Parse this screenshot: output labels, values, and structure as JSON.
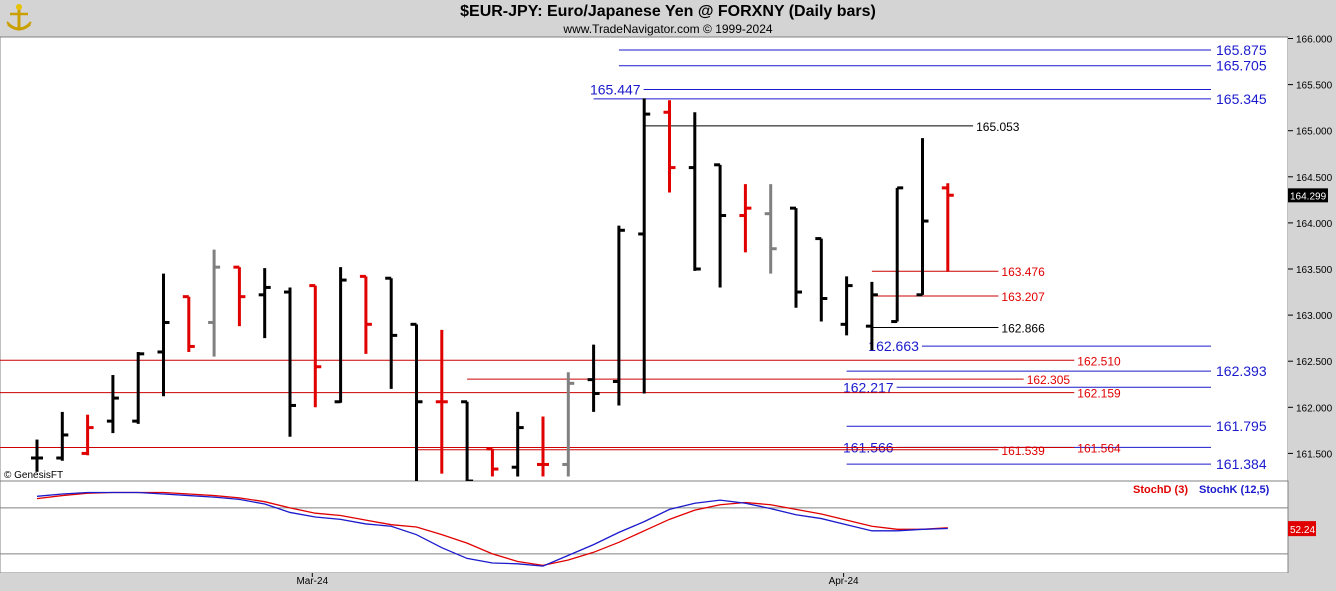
{
  "header": {
    "title": "$EUR-JPY:  Euro/Japanese Yen @ FORXNY  (Daily bars)",
    "subtitle": "www.TradeNavigator.com © 1999-2024"
  },
  "watermark": "© GenesisFT",
  "logo_icon": "trade-navigator-logo-icon",
  "colors": {
    "up_bar": "#000000",
    "down_bar": "#e00000",
    "neutral_bar": "#808080",
    "blue_level": "#1a1acc",
    "red_level": "#cc0000",
    "stoch_d": "#e00000",
    "stoch_k": "#1a1acc"
  },
  "chart_data": [
    {
      "type": "ohlc",
      "title": "$EUR-JPY:  Euro/Japanese Yen @ FORXNY  (Daily bars)",
      "ylim": [
        161.2,
        166.1
      ],
      "y_ticks": [
        "166.000",
        "165.500",
        "165.000",
        "164.500",
        "164.000",
        "163.500",
        "163.000",
        "162.500",
        "162.000",
        "161.500"
      ],
      "y_tick_values": [
        166.0,
        165.5,
        165.0,
        164.5,
        164.0,
        163.5,
        163.0,
        162.5,
        162.0,
        161.5
      ],
      "x_labels": [
        {
          "label": "Mar-24",
          "index": 11
        },
        {
          "label": "Apr-24",
          "index": 32
        }
      ],
      "last_price_label": "164.299",
      "last_price": 164.299,
      "bars": [
        {
          "o": 161.45,
          "h": 161.65,
          "l": 161.3,
          "c": 161.45,
          "color": "black"
        },
        {
          "o": 161.45,
          "h": 161.95,
          "l": 161.42,
          "c": 161.7,
          "color": "black"
        },
        {
          "o": 161.5,
          "h": 161.92,
          "l": 161.48,
          "c": 161.78,
          "color": "red"
        },
        {
          "o": 161.85,
          "h": 162.35,
          "l": 161.72,
          "c": 162.1,
          "color": "black"
        },
        {
          "o": 161.85,
          "h": 162.6,
          "l": 161.82,
          "c": 162.58,
          "color": "black"
        },
        {
          "o": 162.6,
          "h": 163.45,
          "l": 162.12,
          "c": 162.92,
          "color": "black"
        },
        {
          "o": 163.2,
          "h": 163.2,
          "l": 162.6,
          "c": 162.66,
          "color": "red"
        },
        {
          "o": 162.92,
          "h": 163.71,
          "l": 162.55,
          "c": 163.52,
          "color": "gray"
        },
        {
          "o": 163.52,
          "h": 163.52,
          "l": 162.88,
          "c": 163.2,
          "color": "red"
        },
        {
          "o": 163.22,
          "h": 163.51,
          "l": 162.75,
          "c": 163.3,
          "color": "black"
        },
        {
          "o": 163.25,
          "h": 163.3,
          "l": 161.68,
          "c": 162.02,
          "color": "black"
        },
        {
          "o": 163.32,
          "h": 163.32,
          "l": 162.0,
          "c": 162.44,
          "color": "red"
        },
        {
          "o": 162.06,
          "h": 163.52,
          "l": 162.05,
          "c": 163.38,
          "color": "black"
        },
        {
          "o": 163.42,
          "h": 163.42,
          "l": 162.58,
          "c": 162.9,
          "color": "red"
        },
        {
          "o": 163.4,
          "h": 163.4,
          "l": 162.2,
          "c": 162.78,
          "color": "black"
        },
        {
          "o": 162.9,
          "h": 162.9,
          "l": 161.2,
          "c": 162.06,
          "color": "black"
        },
        {
          "o": 162.06,
          "h": 162.84,
          "l": 161.28,
          "c": 162.06,
          "color": "red"
        },
        {
          "o": 162.06,
          "h": 162.06,
          "l": 161.2,
          "c": 161.2,
          "color": "black"
        },
        {
          "o": 161.55,
          "h": 161.55,
          "l": 161.25,
          "c": 161.33,
          "color": "red"
        },
        {
          "o": 161.35,
          "h": 161.95,
          "l": 161.25,
          "c": 161.78,
          "color": "black"
        },
        {
          "o": 161.38,
          "h": 161.9,
          "l": 161.25,
          "c": 161.38,
          "color": "red"
        },
        {
          "o": 161.38,
          "h": 162.38,
          "l": 161.25,
          "c": 162.26,
          "color": "gray"
        },
        {
          "o": 162.3,
          "h": 162.68,
          "l": 161.95,
          "c": 162.15,
          "color": "black"
        },
        {
          "o": 162.28,
          "h": 163.97,
          "l": 162.02,
          "c": 163.92,
          "color": "black"
        },
        {
          "o": 163.88,
          "h": 165.35,
          "l": 162.15,
          "c": 165.18,
          "color": "black"
        },
        {
          "o": 165.2,
          "h": 165.33,
          "l": 164.33,
          "c": 164.6,
          "color": "red"
        },
        {
          "o": 164.6,
          "h": 165.2,
          "l": 163.48,
          "c": 163.5,
          "color": "black"
        },
        {
          "o": 164.63,
          "h": 164.63,
          "l": 163.3,
          "c": 164.08,
          "color": "black"
        },
        {
          "o": 164.08,
          "h": 164.42,
          "l": 163.68,
          "c": 164.16,
          "color": "red"
        },
        {
          "o": 164.1,
          "h": 164.42,
          "l": 163.45,
          "c": 163.72,
          "color": "gray"
        },
        {
          "o": 164.16,
          "h": 164.16,
          "l": 163.08,
          "c": 163.25,
          "color": "black"
        },
        {
          "o": 163.83,
          "h": 163.83,
          "l": 162.93,
          "c": 163.18,
          "color": "black"
        },
        {
          "o": 162.9,
          "h": 163.42,
          "l": 162.78,
          "c": 163.32,
          "color": "black"
        },
        {
          "o": 162.88,
          "h": 163.36,
          "l": 162.62,
          "c": 163.22,
          "color": "black"
        },
        {
          "o": 162.93,
          "h": 164.38,
          "l": 162.93,
          "c": 164.38,
          "color": "black"
        },
        {
          "o": 163.22,
          "h": 164.92,
          "l": 163.22,
          "c": 164.02,
          "color": "black"
        },
        {
          "o": 164.38,
          "h": 164.43,
          "l": 163.47,
          "c": 164.3,
          "color": "red"
        }
      ],
      "levels": [
        {
          "value": 165.875,
          "label": "165.875",
          "color": "blue",
          "from": 23,
          "label_side": "right"
        },
        {
          "value": 165.705,
          "label": "165.705",
          "color": "blue",
          "from": 23,
          "label_side": "right"
        },
        {
          "value": 165.345,
          "label": "165.345",
          "color": "blue",
          "from": 22,
          "label_side": "right"
        },
        {
          "value": 165.447,
          "label": "165.447",
          "color": "blue",
          "from": 22,
          "label_side": "left"
        },
        {
          "value": 165.053,
          "label": "165.053",
          "color": "black",
          "from": 24,
          "to": 37,
          "label_side": "end"
        },
        {
          "value": 163.476,
          "label": "163.476",
          "color": "red",
          "from": 33,
          "to": 38,
          "label_side": "end"
        },
        {
          "value": 163.207,
          "label": "163.207",
          "color": "red",
          "from": 33,
          "to": 38,
          "label_side": "end"
        },
        {
          "value": 162.866,
          "label": "162.866",
          "color": "black",
          "from": 33,
          "to": 38,
          "label_side": "end"
        },
        {
          "value": 162.663,
          "label": "162.663",
          "color": "blue",
          "from": 33,
          "label_side": "left"
        },
        {
          "value": 162.51,
          "label": "162.510",
          "color": "red",
          "from": -1,
          "to": 41,
          "label_side": "end"
        },
        {
          "value": 162.393,
          "label": "162.393",
          "color": "blue",
          "from": 32,
          "label_side": "right"
        },
        {
          "value": 162.305,
          "label": "162.305",
          "color": "red",
          "from": 17,
          "to": 39,
          "label_side": "end"
        },
        {
          "value": 162.217,
          "label": "162.217",
          "color": "blue",
          "from": 32,
          "label_side": "left"
        },
        {
          "value": 162.159,
          "label": "162.159",
          "color": "red",
          "from": -1,
          "to": 41,
          "label_side": "end"
        },
        {
          "value": 161.795,
          "label": "161.795",
          "color": "blue",
          "from": 32,
          "label_side": "right"
        },
        {
          "value": 161.566,
          "label": "161.566",
          "color": "blue",
          "from": 32,
          "label_side": "left"
        },
        {
          "value": 161.564,
          "label": "161.564",
          "color": "red",
          "from": -1,
          "to": 41,
          "label_side": "end"
        },
        {
          "value": 161.539,
          "label": "161.539",
          "color": "red",
          "from": 15,
          "to": 38,
          "label_side": "end"
        },
        {
          "value": 161.384,
          "label": "161.384",
          "color": "blue",
          "from": 32,
          "label_side": "right"
        }
      ]
    },
    {
      "type": "line",
      "title": "",
      "legend": [
        "StochD (3)",
        "StochK (12,5)"
      ],
      "last_value_label": "52.24",
      "last_value": 52.24,
      "ylim": [
        -5,
        115
      ],
      "series": [
        {
          "name": "StochD (3)",
          "color": "red",
          "values": [
            92,
            96,
            99,
            100,
            100,
            100,
            98,
            96,
            93,
            88,
            80,
            73,
            70,
            64,
            58,
            55,
            45,
            34,
            20,
            10,
            5,
            12,
            22,
            35,
            50,
            65,
            77,
            84,
            87,
            84,
            78,
            72,
            64,
            56,
            52,
            52,
            54
          ]
        },
        {
          "name": "StochK (12,5)",
          "color": "blue",
          "values": [
            95,
            98,
            100,
            100,
            100,
            98,
            96,
            94,
            91,
            85,
            74,
            68,
            65,
            59,
            56,
            45,
            28,
            14,
            8,
            7,
            4,
            18,
            32,
            48,
            62,
            78,
            86,
            90,
            86,
            79,
            71,
            66,
            58,
            50,
            50,
            52,
            53
          ]
        }
      ]
    }
  ]
}
